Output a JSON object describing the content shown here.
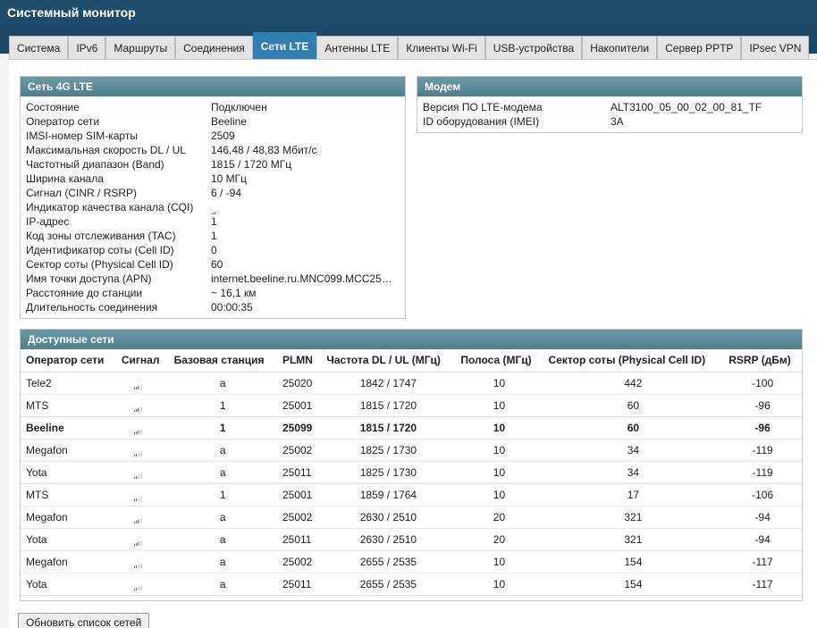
{
  "app": {
    "title": "Системный монитор"
  },
  "tabs": [
    {
      "label": "Система",
      "active": false
    },
    {
      "label": "IPv6",
      "active": false
    },
    {
      "label": "Маршруты",
      "active": false
    },
    {
      "label": "Соединения",
      "active": false
    },
    {
      "label": "Сети LTE",
      "active": true
    },
    {
      "label": "Антенны LTE",
      "active": false
    },
    {
      "label": "Клиенты Wi-Fi",
      "active": false
    },
    {
      "label": "USB-устройства",
      "active": false
    },
    {
      "label": "Накопители",
      "active": false
    },
    {
      "label": "Сервер PPTP",
      "active": false
    },
    {
      "label": "IPsec VPN",
      "active": false
    }
  ],
  "lte": {
    "title": "Сеть 4G LTE",
    "rows": [
      {
        "label": "Состояние",
        "value": "Подключен"
      },
      {
        "label": "Оператор сети",
        "value": "Beeline"
      },
      {
        "label": "IMSI-номер SIM-карты",
        "value": "2509"
      },
      {
        "label": "Максимальная скорость DL / UL",
        "value": "146,48 / 48,83 Мбит/с"
      },
      {
        "label": "Частотный диапазон (Band)",
        "value": "1815 / 1720 МГц"
      },
      {
        "label": "Ширина канала",
        "value": "10 МГц"
      },
      {
        "label": "Сигнал (CINR / RSRP)",
        "value": "6 / -94"
      },
      {
        "label": "Индикатор качества канала (CQI)",
        "value": "",
        "signal_bars": 3
      },
      {
        "label": "IP-адрес",
        "value": "1"
      },
      {
        "label": "Код зоны отслеживания (TAC)",
        "value": "1"
      },
      {
        "label": "Идентификатор соты (Cell ID)",
        "value": "0"
      },
      {
        "label": "Сектор соты (Physical Cell ID)",
        "value": "60"
      },
      {
        "label": "Имя точки доступа (APN)",
        "value": "internet.beeline.ru.MNC099.MCC25…"
      },
      {
        "label": "Расстояние до станции",
        "value": "~ 16,1 км"
      },
      {
        "label": "Длительность соединения",
        "value": "00:00:35"
      }
    ]
  },
  "modem": {
    "title": "Модем",
    "rows": [
      {
        "label": "Версия ПО LTE-модема",
        "value": "ALT3100_05_00_02_00_81_TF"
      },
      {
        "label": "ID оборудования (IMEI)",
        "value": "3A"
      }
    ]
  },
  "networks": {
    "title": "Доступные сети",
    "columns": [
      "Оператор сети",
      "Сигнал",
      "Базовая станция",
      "PLMN",
      "Частота DL / UL (МГц)",
      "Полоса (МГц)",
      "Сектор соты (Physical Cell ID)",
      "RSRP (дБм)"
    ],
    "rows": [
      {
        "operator": "Tele2",
        "signal_bars": 3,
        "station": "a",
        "plmn": "25020",
        "freq": "1842 / 1747",
        "band": "10",
        "cell": "442",
        "rsrp": "-100",
        "current": false
      },
      {
        "operator": "MTS",
        "signal_bars": 3,
        "station": "1",
        "plmn": "25001",
        "freq": "1815 / 1720",
        "band": "10",
        "cell": "60",
        "rsrp": "-96",
        "current": false
      },
      {
        "operator": "Beeline",
        "signal_bars": 3,
        "station": "1",
        "plmn": "25099",
        "freq": "1815 / 1720",
        "band": "10",
        "cell": "60",
        "rsrp": "-96",
        "current": true
      },
      {
        "operator": "Megafon",
        "signal_bars": 2,
        "station": "a",
        "plmn": "25002",
        "freq": "1825 / 1730",
        "band": "10",
        "cell": "34",
        "rsrp": "-119",
        "current": false
      },
      {
        "operator": "Yota",
        "signal_bars": 2,
        "station": "a",
        "plmn": "25011",
        "freq": "1825 / 1730",
        "band": "10",
        "cell": "34",
        "rsrp": "-119",
        "current": false
      },
      {
        "operator": "MTS",
        "signal_bars": 2,
        "station": "1",
        "plmn": "25001",
        "freq": "1859 / 1764",
        "band": "10",
        "cell": "17",
        "rsrp": "-106",
        "current": false
      },
      {
        "operator": "Megafon",
        "signal_bars": 3,
        "station": "a",
        "plmn": "25002",
        "freq": "2630 / 2510",
        "band": "20",
        "cell": "321",
        "rsrp": "-94",
        "current": false
      },
      {
        "operator": "Yota",
        "signal_bars": 3,
        "station": "a",
        "plmn": "25011",
        "freq": "2630 / 2510",
        "band": "20",
        "cell": "321",
        "rsrp": "-94",
        "current": false
      },
      {
        "operator": "Megafon",
        "signal_bars": 2,
        "station": "a",
        "plmn": "25002",
        "freq": "2655 / 2535",
        "band": "10",
        "cell": "154",
        "rsrp": "-117",
        "current": false
      },
      {
        "operator": "Yota",
        "signal_bars": 2,
        "station": "a",
        "plmn": "25011",
        "freq": "2655 / 2535",
        "band": "10",
        "cell": "154",
        "rsrp": "-117",
        "current": false
      }
    ]
  },
  "refresh_button": "Обновить список сетей",
  "colors": {
    "header_bg": "#1f4f6e",
    "tab_active": "#2f7fb0",
    "panel_head": "#5a8a96"
  }
}
